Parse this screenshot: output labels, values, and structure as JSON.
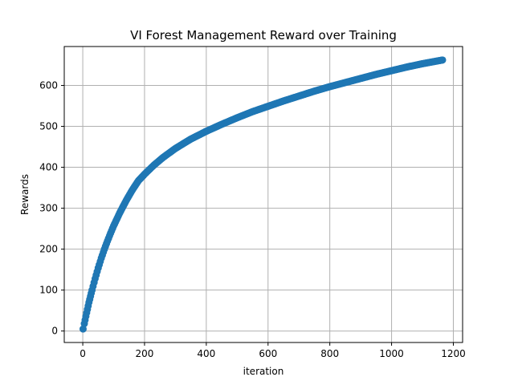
{
  "chart_data": {
    "type": "scatter",
    "title": "VI Forest Management Reward over Training",
    "xlabel": "iteration",
    "ylabel": "Rewards",
    "xlim": [
      -60,
      1230
    ],
    "ylim": [
      -28,
      695
    ],
    "xticks": [
      0,
      200,
      400,
      600,
      800,
      1000,
      1200
    ],
    "yticks": [
      0,
      100,
      200,
      300,
      400,
      500,
      600
    ],
    "grid": true,
    "series": [
      {
        "color": "#1f77b4",
        "x": [
          1,
          5,
          10,
          15,
          20,
          25,
          30,
          40,
          50,
          60,
          70,
          80,
          90,
          100,
          120,
          140,
          160,
          180,
          200,
          230,
          260,
          300,
          350,
          400,
          450,
          500,
          550,
          600,
          650,
          700,
          750,
          800,
          850,
          900,
          950,
          1000,
          1050,
          1100,
          1150,
          1165
        ],
        "values": [
          5,
          18,
          36,
          53,
          70,
          85,
          100,
          128,
          154,
          178,
          200,
          220,
          239,
          257,
          289,
          318,
          344,
          367,
          383,
          405,
          424,
          446,
          469,
          488,
          505,
          521,
          536,
          549,
          562,
          574,
          586,
          597,
          607,
          617,
          627,
          636,
          645,
          653,
          660,
          662
        ]
      }
    ]
  }
}
